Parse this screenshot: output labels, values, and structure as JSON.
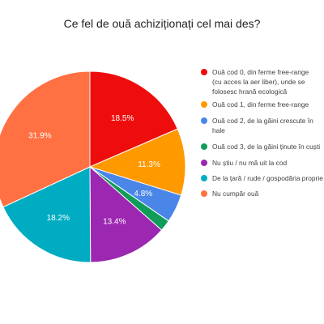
{
  "chart_data": {
    "type": "pie",
    "title": "Ce fel de ouă achiziționați cel mai des?",
    "slices": [
      {
        "label": "Ouă cod 0, din ferme free-range (cu acces la aer liber), unde se folosesc hrană ecologică",
        "value": 18.5,
        "display": "18.5%",
        "color": "#ee0d0d"
      },
      {
        "label": "Ouă cod 1, din ferme free-range",
        "value": 11.3,
        "display": "11.3%",
        "color": "#ff9900"
      },
      {
        "label": "Ouă cod 2, de la găini crescute în hale",
        "value": 4.8,
        "display": "4.8%",
        "color": "#4a86e8"
      },
      {
        "label": "Ouă cod 3, de la găini ținute în cuști",
        "value": 1.9,
        "display": "",
        "color": "#0f9d58"
      },
      {
        "label": "Nu știu / nu mă uit la cod",
        "value": 13.4,
        "display": "13.4%",
        "color": "#9c27b0"
      },
      {
        "label": "De la țară / rude / gospodăria proprie",
        "value": 18.2,
        "display": "18.2%",
        "color": "#00acc1"
      },
      {
        "label": "Nu cumpăr ouă",
        "value": 31.9,
        "display": "31.9%",
        "color": "#ff7043"
      }
    ]
  }
}
